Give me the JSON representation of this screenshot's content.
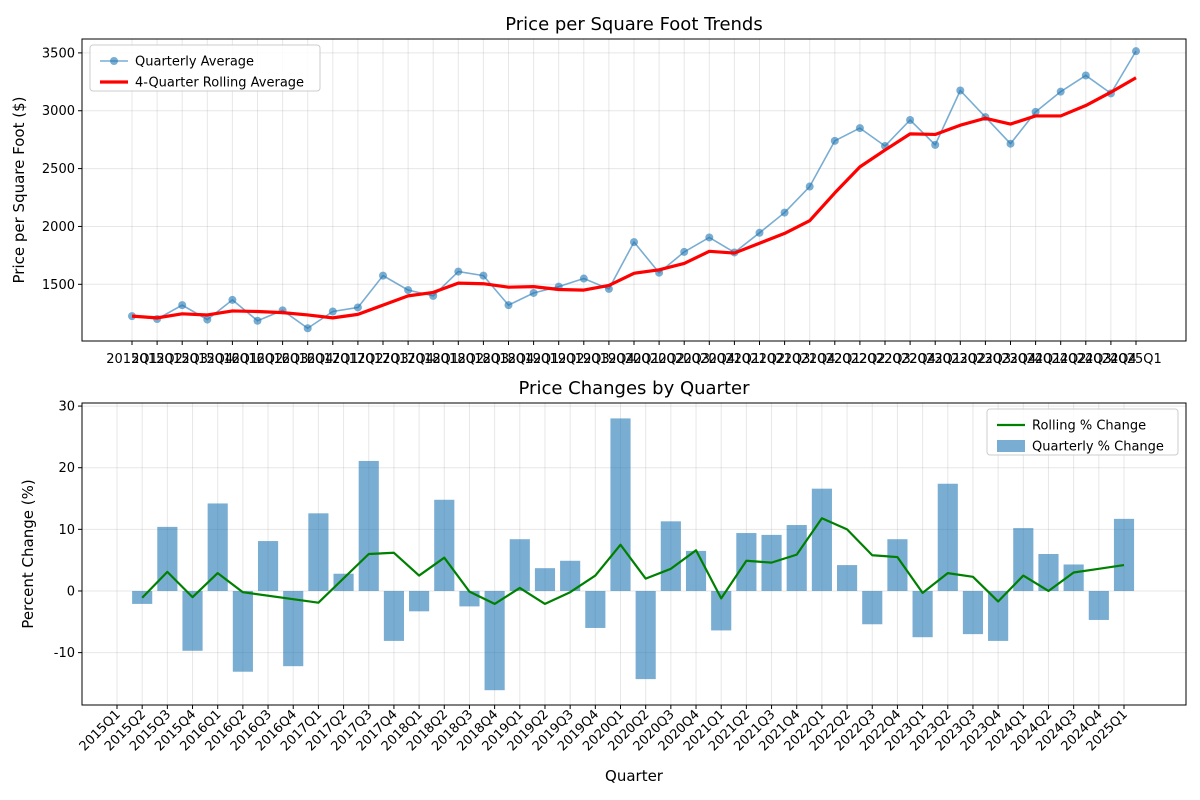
{
  "chart_data": [
    {
      "type": "line",
      "title": "Price per Square Foot Trends",
      "xlabel": "",
      "ylabel": "Price per Square Foot ($)",
      "ylim": [
        1010,
        3620
      ],
      "yticks": [
        1500,
        2000,
        2500,
        3000,
        3500
      ],
      "grid": true,
      "legend_position": "top-left",
      "categories": [
        "2015Q1",
        "2015Q2",
        "2015Q3",
        "2015Q4",
        "2016Q1",
        "2016Q2",
        "2016Q3",
        "2016Q4",
        "2017Q1",
        "2017Q2",
        "2017Q3",
        "2017Q4",
        "2018Q1",
        "2018Q2",
        "2018Q3",
        "2018Q4",
        "2019Q1",
        "2019Q2",
        "2019Q3",
        "2019Q4",
        "2020Q1",
        "2020Q2",
        "2020Q3",
        "2020Q4",
        "2021Q1",
        "2021Q2",
        "2021Q3",
        "2021Q4",
        "2022Q1",
        "2022Q2",
        "2022Q3",
        "2022Q4",
        "2023Q1",
        "2023Q2",
        "2023Q3",
        "2023Q4",
        "2024Q1",
        "2024Q2",
        "2024Q3",
        "2024Q4",
        "2025Q1"
      ],
      "series": [
        {
          "name": "Quarterly Average",
          "color": "#1f77b4",
          "marker": "circle",
          "values": [
            1225,
            1200,
            1320,
            1195,
            1365,
            1185,
            1275,
            1120,
            1265,
            1300,
            1575,
            1450,
            1400,
            1610,
            1575,
            1320,
            1425,
            1480,
            1550,
            1460,
            1865,
            1600,
            1780,
            1905,
            1775,
            1945,
            2120,
            2345,
            2740,
            2850,
            2695,
            2920,
            2705,
            3175,
            2945,
            2715,
            2990,
            3165,
            3305,
            3150,
            3515
          ]
        },
        {
          "name": "4-Quarter Rolling Average",
          "color": "#ff0000",
          "values": [
            1225,
            1210,
            1245,
            1235,
            1270,
            1265,
            1255,
            1235,
            1210,
            1240,
            1320,
            1400,
            1430,
            1510,
            1505,
            1475,
            1480,
            1455,
            1450,
            1490,
            1595,
            1625,
            1680,
            1785,
            1770,
            1855,
            1940,
            2050,
            2290,
            2515,
            2660,
            2800,
            2795,
            2875,
            2935,
            2885,
            2955,
            2955,
            3045,
            3160,
            3285
          ]
        }
      ]
    },
    {
      "type": "bar",
      "title": "Price Changes by Quarter",
      "xlabel": "Quarter",
      "ylabel": "Percent Change (%)",
      "ylim": [
        -18.5,
        30.5
      ],
      "yticks": [
        -10,
        0,
        10,
        20,
        30
      ],
      "grid": true,
      "legend_position": "top-right",
      "categories": [
        "2015Q1",
        "2015Q2",
        "2015Q3",
        "2015Q4",
        "2016Q1",
        "2016Q2",
        "2016Q3",
        "2016Q4",
        "2017Q1",
        "2017Q2",
        "2017Q3",
        "2017Q4",
        "2018Q1",
        "2018Q2",
        "2018Q3",
        "2018Q4",
        "2019Q1",
        "2019Q2",
        "2019Q3",
        "2019Q4",
        "2020Q1",
        "2020Q2",
        "2020Q3",
        "2020Q4",
        "2021Q1",
        "2021Q2",
        "2021Q3",
        "2021Q4",
        "2022Q1",
        "2022Q2",
        "2022Q3",
        "2022Q4",
        "2023Q1",
        "2023Q2",
        "2023Q3",
        "2023Q4",
        "2024Q1",
        "2024Q2",
        "2024Q3",
        "2024Q4",
        "2025Q1"
      ],
      "series": [
        {
          "name": "Quarterly % Change",
          "kind": "bar",
          "color": "#1f77b4",
          "values": [
            null,
            -2.1,
            10.4,
            -9.7,
            14.2,
            -13.1,
            8.1,
            -12.2,
            12.6,
            2.8,
            21.1,
            -8.1,
            -3.3,
            14.8,
            -2.5,
            -16.1,
            8.4,
            3.7,
            4.9,
            -6.0,
            28.0,
            -14.3,
            11.3,
            6.5,
            -6.4,
            9.4,
            9.1,
            10.7,
            16.6,
            4.2,
            -5.4,
            8.4,
            -7.5,
            17.4,
            -7.0,
            -8.1,
            10.2,
            6.0,
            4.3,
            -4.7,
            11.7
          ]
        },
        {
          "name": "Rolling % Change",
          "kind": "line",
          "color": "#008000",
          "values": [
            null,
            -1.1,
            3.1,
            -1.0,
            2.9,
            -0.2,
            null,
            null,
            -1.9,
            null,
            6.0,
            6.2,
            2.5,
            5.4,
            -0.1,
            -2.1,
            0.5,
            -2.1,
            -0.2,
            2.5,
            7.5,
            2.0,
            3.6,
            6.6,
            -1.2,
            4.9,
            4.6,
            5.9,
            11.8,
            10.0,
            5.8,
            5.5,
            -0.3,
            2.9,
            2.3,
            -1.7,
            2.5,
            0.0,
            3.0,
            3.6,
            4.2
          ]
        }
      ]
    }
  ]
}
